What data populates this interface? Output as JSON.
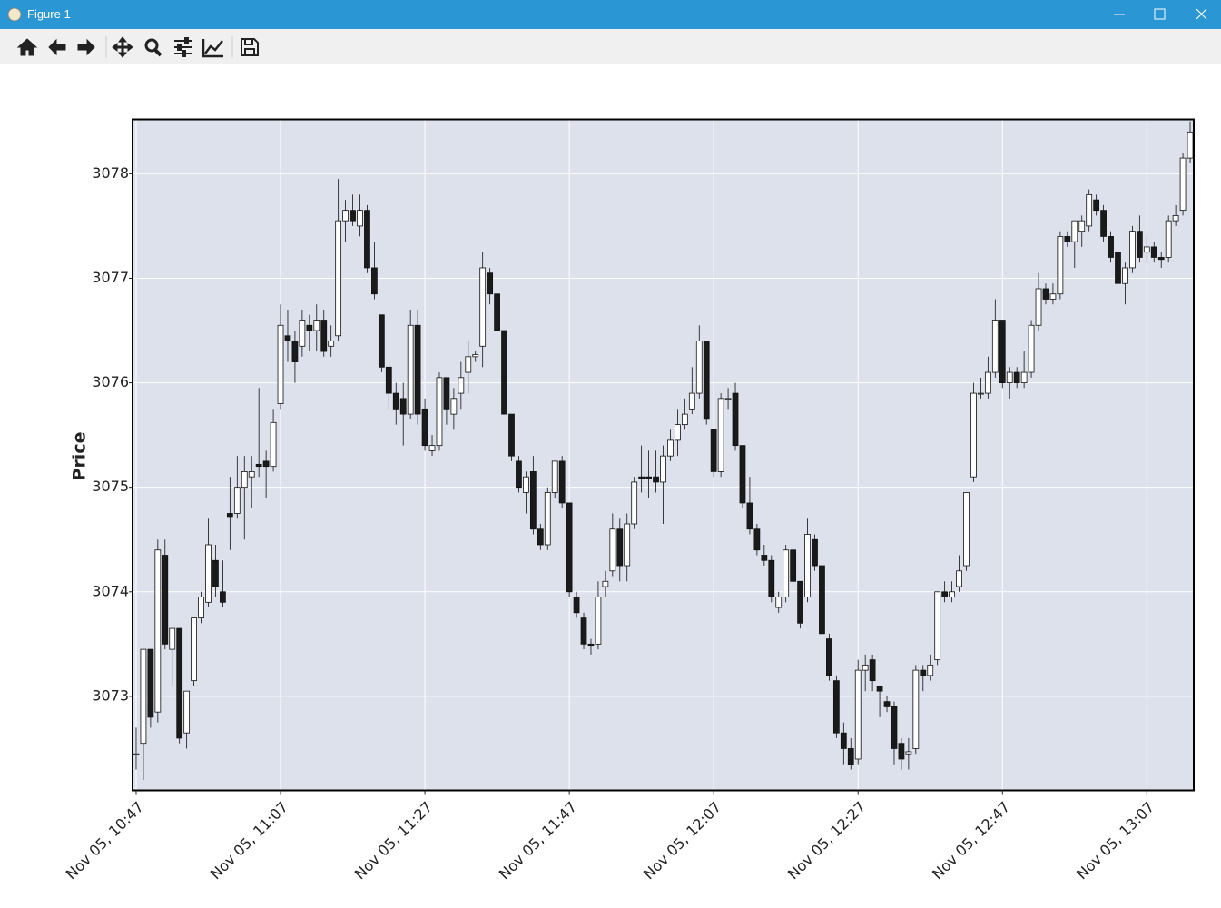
{
  "window": {
    "title": "Figure 1"
  },
  "chart_data": {
    "type": "candlestick",
    "ylabel": "Price",
    "categories": [
      "Nov 05, 10:47",
      null,
      null,
      null,
      null,
      null,
      null,
      null,
      null,
      null,
      null,
      null,
      null,
      null,
      null,
      null,
      null,
      null,
      null,
      null,
      "Nov 05, 11:07",
      null,
      null,
      null,
      null,
      null,
      null,
      null,
      null,
      null,
      null,
      null,
      null,
      null,
      null,
      null,
      null,
      null,
      null,
      null,
      "Nov 05, 11:27",
      null,
      null,
      null,
      null,
      null,
      null,
      null,
      null,
      null,
      null,
      null,
      null,
      null,
      null,
      null,
      null,
      null,
      null,
      null,
      "Nov 05, 11:47",
      null,
      null,
      null,
      null,
      null,
      null,
      null,
      null,
      null,
      null,
      null,
      null,
      null,
      null,
      null,
      null,
      null,
      null,
      null,
      "Nov 05, 12:07",
      null,
      null,
      null,
      null,
      null,
      null,
      null,
      null,
      null,
      null,
      null,
      null,
      null,
      null,
      null,
      null,
      null,
      null,
      null,
      "Nov 05, 12:27",
      null,
      null,
      null,
      null,
      null,
      null,
      null,
      null,
      null,
      null,
      null,
      null,
      null,
      null,
      null,
      null,
      null,
      null,
      null,
      "Nov 05, 12:47",
      null,
      null,
      null,
      null,
      null,
      null,
      null,
      null,
      null,
      null,
      null,
      null,
      null,
      null,
      null,
      null,
      null,
      null,
      null,
      "Nov 05, 13:07",
      null,
      null,
      null,
      null,
      null,
      null
    ],
    "open": [
      3072.45,
      3072.55,
      3073.45,
      3072.85,
      3074.35,
      3073.45,
      3073.65,
      3072.65,
      3073.15,
      3073.75,
      3073.9,
      3074.3,
      3074.0,
      3074.75,
      3074.75,
      3075.0,
      3075.1,
      3075.22,
      3075.25,
      3075.2,
      3075.8,
      3076.45,
      3076.4,
      3076.35,
      3076.55,
      3076.5,
      3076.6,
      3076.35,
      3076.45,
      3077.55,
      3077.65,
      3077.5,
      3077.65,
      3077.1,
      3076.65,
      3076.15,
      3075.9,
      3075.85,
      3075.7,
      3076.55,
      3075.75,
      3075.35,
      3075.4,
      3076.05,
      3075.7,
      3075.9,
      3076.1,
      3076.25,
      3076.35,
      3077.05,
      3076.85,
      3076.5,
      3075.7,
      3075.25,
      3074.95,
      3075.15,
      3074.6,
      3074.45,
      3074.95,
      3075.25,
      3074.85,
      3073.95,
      3073.75,
      3073.5,
      3073.5,
      3074.05,
      3074.2,
      3074.6,
      3074.25,
      3074.65,
      3075.1,
      3075.1,
      3075.1,
      3075.05,
      3075.3,
      3075.45,
      3075.6,
      3075.75,
      3075.9,
      3076.4,
      3075.55,
      3075.15,
      3075.85,
      3075.9,
      3075.4,
      3074.85,
      3074.6,
      3074.35,
      3074.3,
      3073.85,
      3073.95,
      3074.4,
      3074.1,
      3073.95,
      3074.5,
      3074.25,
      3073.55,
      3073.15,
      3072.65,
      3072.5,
      3072.4,
      3073.25,
      3073.35,
      3073.1,
      3072.95,
      3072.9,
      3072.55,
      3072.45,
      3072.5,
      3073.25,
      3073.2,
      3073.35,
      3074.0,
      3073.95,
      3074.05,
      3074.25,
      3075.1,
      3075.9,
      3075.9,
      3076.1,
      3076.6,
      3076.0,
      3076.1,
      3076.0,
      3076.1,
      3076.55,
      3076.9,
      3076.8,
      3076.85,
      3077.4,
      3077.35,
      3077.45,
      3077.5,
      3077.75,
      3077.65,
      3077.4,
      3077.25,
      3076.95,
      3077.1,
      3077.45,
      3077.25,
      3077.3,
      3077.2,
      3077.2,
      3077.55,
      3077.65,
      3078.15
    ],
    "high": [
      3072.7,
      3073.45,
      3073.45,
      3074.5,
      3074.5,
      3073.65,
      3073.65,
      3073.05,
      3073.75,
      3074.0,
      3074.7,
      3074.45,
      3074.3,
      3075.1,
      3075.3,
      3075.3,
      3075.3,
      3075.95,
      3075.35,
      3075.75,
      3076.75,
      3076.7,
      3076.5,
      3076.7,
      3076.65,
      3076.75,
      3076.7,
      3076.55,
      3077.95,
      3077.75,
      3077.8,
      3077.8,
      3077.7,
      3077.35,
      3076.65,
      3076.15,
      3076.0,
      3076.0,
      3076.7,
      3076.7,
      3075.85,
      3075.5,
      3076.1,
      3076.05,
      3075.95,
      3076.2,
      3076.4,
      3076.3,
      3077.25,
      3077.1,
      3076.9,
      3076.5,
      3075.7,
      3075.3,
      3075.15,
      3075.3,
      3074.65,
      3075.0,
      3075.25,
      3075.3,
      3074.85,
      3074.0,
      3073.8,
      3073.55,
      3074.1,
      3074.2,
      3074.75,
      3074.7,
      3074.75,
      3075.1,
      3075.4,
      3075.35,
      3075.35,
      3075.4,
      3075.55,
      3075.75,
      3075.85,
      3076.15,
      3076.55,
      3076.4,
      3075.55,
      3075.9,
      3075.95,
      3076.0,
      3075.4,
      3075.1,
      3074.65,
      3074.45,
      3074.35,
      3074.0,
      3074.45,
      3074.4,
      3074.1,
      3074.7,
      3074.55,
      3074.25,
      3073.6,
      3073.2,
      3072.75,
      3072.6,
      3073.35,
      3073.4,
      3073.4,
      3073.1,
      3073.0,
      3072.95,
      3072.6,
      3072.6,
      3073.3,
      3073.3,
      3073.4,
      3074.0,
      3074.1,
      3074.1,
      3074.35,
      3074.95,
      3076.0,
      3076.05,
      3076.25,
      3076.8,
      3076.6,
      3076.15,
      3076.15,
      3076.3,
      3076.6,
      3077.05,
      3076.95,
      3076.95,
      3077.45,
      3077.45,
      3077.55,
      3077.6,
      3077.85,
      3077.8,
      3077.7,
      3077.45,
      3077.3,
      3077.15,
      3077.5,
      3077.6,
      3077.4,
      3077.35,
      3077.25,
      3077.6,
      3077.7,
      3078.2,
      3078.5
    ],
    "low": [
      3072.3,
      3072.2,
      3072.7,
      3072.75,
      3073.45,
      3073.1,
      3072.55,
      3072.5,
      3073.1,
      3073.7,
      3073.85,
      3073.95,
      3073.85,
      3074.4,
      3074.7,
      3074.5,
      3074.8,
      3075.1,
      3074.9,
      3075.15,
      3075.75,
      3076.2,
      3076.0,
      3076.25,
      3076.3,
      3076.3,
      3076.25,
      3076.25,
      3076.4,
      3077.35,
      3077.5,
      3077.4,
      3077.05,
      3076.8,
      3076.1,
      3075.75,
      3075.6,
      3075.4,
      3075.65,
      3075.6,
      3075.35,
      3075.3,
      3075.35,
      3075.6,
      3075.55,
      3075.75,
      3075.9,
      3076.2,
      3076.15,
      3076.75,
      3076.45,
      3075.7,
      3075.25,
      3074.95,
      3074.75,
      3074.55,
      3074.4,
      3074.4,
      3074.9,
      3074.8,
      3073.95,
      3073.75,
      3073.45,
      3073.4,
      3073.45,
      3073.95,
      3074.15,
      3074.1,
      3074.1,
      3074.6,
      3074.95,
      3074.9,
      3074.95,
      3074.65,
      3075.25,
      3075.3,
      3075.55,
      3075.7,
      3075.85,
      3075.6,
      3075.1,
      3075.1,
      3075.75,
      3075.35,
      3074.8,
      3074.55,
      3074.35,
      3074.25,
      3073.9,
      3073.8,
      3073.9,
      3074.05,
      3073.65,
      3073.9,
      3074.2,
      3073.55,
      3073.15,
      3072.6,
      3072.35,
      3072.3,
      3072.35,
      3073.05,
      3073.05,
      3072.8,
      3072.85,
      3072.35,
      3072.3,
      3072.3,
      3072.45,
      3073.05,
      3073.15,
      3073.3,
      3073.9,
      3073.9,
      3074.0,
      3074.2,
      3075.05,
      3075.85,
      3075.85,
      3076.05,
      3075.95,
      3075.85,
      3075.95,
      3075.95,
      3076.05,
      3076.5,
      3076.75,
      3076.75,
      3076.8,
      3077.3,
      3077.1,
      3077.3,
      3077.45,
      3077.6,
      3077.35,
      3077.15,
      3076.9,
      3076.75,
      3077.05,
      3077.15,
      3077.15,
      3077.15,
      3077.1,
      3077.15,
      3077.5,
      3077.6,
      3078.1
    ],
    "close": [
      3072.45,
      3073.45,
      3072.8,
      3074.4,
      3073.5,
      3073.65,
      3072.6,
      3073.05,
      3073.75,
      3073.95,
      3074.45,
      3074.05,
      3073.9,
      3074.72,
      3075.0,
      3075.15,
      3075.15,
      3075.2,
      3075.2,
      3075.62,
      3076.55,
      3076.4,
      3076.2,
      3076.6,
      3076.5,
      3076.6,
      3076.3,
      3076.4,
      3077.55,
      3077.65,
      3077.55,
      3077.65,
      3077.1,
      3076.85,
      3076.15,
      3075.9,
      3075.75,
      3075.7,
      3076.55,
      3075.7,
      3075.4,
      3075.4,
      3076.05,
      3075.75,
      3075.85,
      3076.05,
      3076.25,
      3076.27,
      3077.1,
      3076.85,
      3076.5,
      3075.7,
      3075.3,
      3075.0,
      3075.1,
      3074.6,
      3074.45,
      3074.95,
      3075.25,
      3074.85,
      3074.0,
      3073.8,
      3073.5,
      3073.48,
      3073.95,
      3074.1,
      3074.6,
      3074.25,
      3074.65,
      3075.05,
      3075.08,
      3075.08,
      3075.05,
      3075.3,
      3075.45,
      3075.6,
      3075.7,
      3075.9,
      3076.4,
      3075.65,
      3075.15,
      3075.85,
      3075.85,
      3075.4,
      3074.85,
      3074.6,
      3074.4,
      3074.3,
      3073.95,
      3073.95,
      3074.4,
      3074.1,
      3073.7,
      3074.55,
      3074.25,
      3073.6,
      3073.2,
      3072.65,
      3072.5,
      3072.35,
      3073.25,
      3073.3,
      3073.15,
      3073.05,
      3072.9,
      3072.5,
      3072.4,
      3072.47,
      3073.25,
      3073.2,
      3073.3,
      3074.0,
      3073.95,
      3074.0,
      3074.2,
      3074.95,
      3075.9,
      3075.9,
      3076.1,
      3076.6,
      3076.0,
      3076.1,
      3076.0,
      3076.1,
      3076.55,
      3076.9,
      3076.8,
      3076.85,
      3077.4,
      3077.35,
      3077.55,
      3077.55,
      3077.8,
      3077.65,
      3077.4,
      3077.2,
      3076.95,
      3077.1,
      3077.45,
      3077.2,
      3077.3,
      3077.2,
      3077.18,
      3077.55,
      3077.6,
      3078.15,
      3078.4
    ],
    "up_color": "#ffffff",
    "down_color": "#1a1a1a",
    "edge_color": "#111111",
    "background": "#dce1ec",
    "ylim": [
      3072.1,
      3078.52
    ],
    "yticks": [
      3073,
      3074,
      3075,
      3076,
      3077,
      3078
    ],
    "grid": true
  }
}
